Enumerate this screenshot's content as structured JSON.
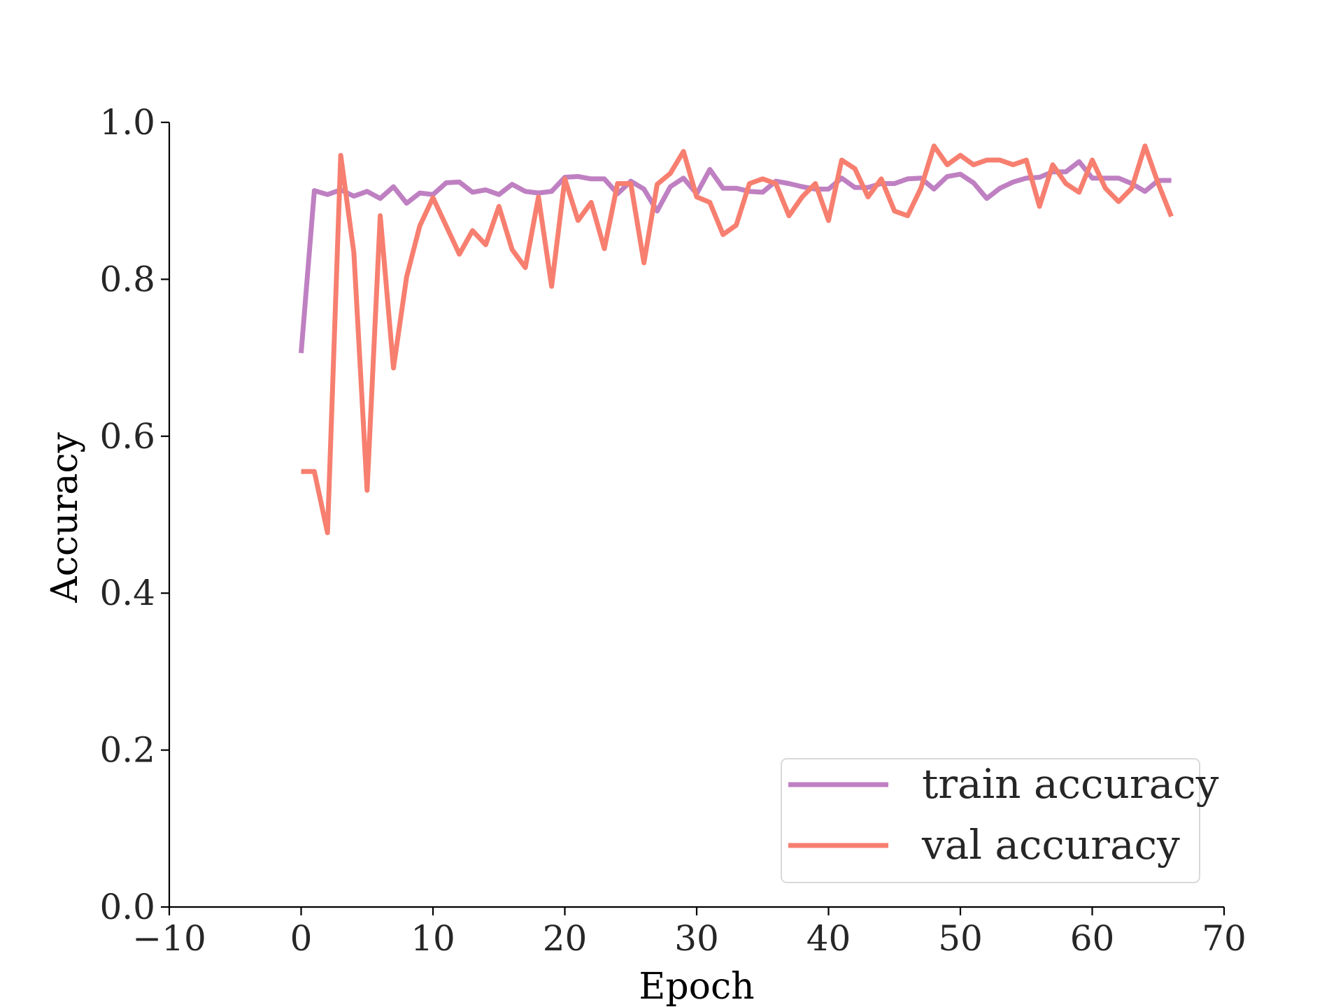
{
  "chart_data": {
    "type": "line",
    "xlabel": "Epoch",
    "ylabel": "Accuracy",
    "xlim": [
      -10,
      70
    ],
    "ylim": [
      0.0,
      1.0
    ],
    "xticks": [
      -10,
      0,
      10,
      20,
      30,
      40,
      50,
      60,
      70
    ],
    "xtick_labels": [
      "−10",
      "0",
      "10",
      "20",
      "30",
      "40",
      "50",
      "60",
      "70"
    ],
    "yticks": [
      0.0,
      0.2,
      0.4,
      0.6,
      0.8,
      1.0
    ],
    "ytick_labels": [
      "0.0",
      "0.2",
      "0.4",
      "0.6",
      "0.8",
      "1.0"
    ],
    "grid": false,
    "legend_position": "lower-right",
    "x": [
      0,
      1,
      2,
      3,
      4,
      5,
      6,
      7,
      8,
      9,
      10,
      11,
      12,
      13,
      14,
      15,
      16,
      17,
      18,
      19,
      20,
      21,
      22,
      23,
      24,
      25,
      26,
      27,
      28,
      29,
      30,
      31,
      32,
      33,
      34,
      35,
      36,
      37,
      38,
      39,
      40,
      41,
      42,
      43,
      44,
      45,
      46,
      47,
      48,
      49,
      50,
      51,
      52,
      53,
      54,
      55,
      56,
      57,
      58,
      59,
      60,
      61,
      62,
      63,
      64,
      65,
      66
    ],
    "series": [
      {
        "name": "train accuracy",
        "color": "#bf80c2",
        "values": [
          0.706,
          0.913,
          0.908,
          0.914,
          0.906,
          0.912,
          0.903,
          0.918,
          0.897,
          0.91,
          0.908,
          0.923,
          0.924,
          0.911,
          0.914,
          0.908,
          0.921,
          0.912,
          0.91,
          0.912,
          0.93,
          0.931,
          0.928,
          0.928,
          0.909,
          0.925,
          0.915,
          0.887,
          0.918,
          0.929,
          0.909,
          0.94,
          0.916,
          0.916,
          0.912,
          0.911,
          0.925,
          0.922,
          0.918,
          0.915,
          0.915,
          0.929,
          0.917,
          0.917,
          0.922,
          0.922,
          0.928,
          0.929,
          0.915,
          0.931,
          0.934,
          0.923,
          0.903,
          0.916,
          0.924,
          0.929,
          0.93,
          0.937,
          0.937,
          0.95,
          0.929,
          0.929,
          0.929,
          0.922,
          0.912,
          0.926,
          0.926
        ]
      },
      {
        "name": "val accuracy",
        "color": "#f77f70",
        "values": [
          0.555,
          0.555,
          0.477,
          0.958,
          0.834,
          0.531,
          0.881,
          0.687,
          0.803,
          0.868,
          0.904,
          0.868,
          0.832,
          0.862,
          0.844,
          0.893,
          0.838,
          0.815,
          0.905,
          0.791,
          0.928,
          0.875,
          0.898,
          0.839,
          0.922,
          0.922,
          0.821,
          0.921,
          0.935,
          0.963,
          0.905,
          0.898,
          0.857,
          0.869,
          0.922,
          0.928,
          0.922,
          0.881,
          0.905,
          0.922,
          0.875,
          0.952,
          0.941,
          0.905,
          0.928,
          0.887,
          0.881,
          0.916,
          0.97,
          0.946,
          0.958,
          0.946,
          0.952,
          0.952,
          0.946,
          0.952,
          0.893,
          0.946,
          0.922,
          0.911,
          0.952,
          0.916,
          0.899,
          0.916,
          0.97,
          0.922,
          0.88
        ]
      }
    ]
  }
}
